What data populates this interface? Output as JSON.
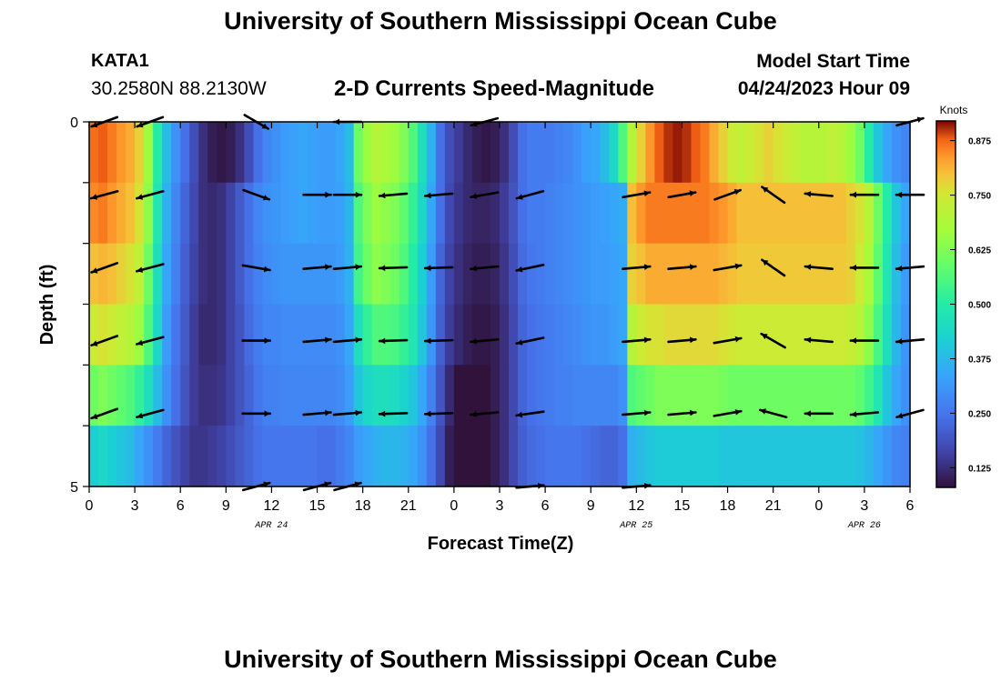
{
  "header": {
    "title": "University of Southern Mississippi Ocean Cube",
    "station": "KATA1",
    "coordinates": "30.2580N  88.2130W",
    "subtitle": "2-D Currents Speed-Magnitude",
    "model_start_label": "Model Start Time",
    "model_start_value": "04/24/2023 Hour 09"
  },
  "footer": {
    "title": "University of Southern Mississippi Ocean Cube"
  },
  "chart_data": {
    "type": "heatmap",
    "title": "2-D Currents Speed-Magnitude",
    "xlabel": "Forecast Time(Z)",
    "ylabel": "Depth (ft)",
    "x_tick_labels": [
      "0",
      "3",
      "6",
      "9",
      "12",
      "15",
      "18",
      "21",
      "0",
      "3",
      "6",
      "9",
      "12",
      "15",
      "18",
      "21",
      "0",
      "3",
      "6"
    ],
    "date_labels": [
      {
        "label": "APR 24",
        "at_tick": 4
      },
      {
        "label": "APR 25",
        "at_tick": 12
      },
      {
        "label": "APR 26",
        "at_tick": 17
      }
    ],
    "y_tick_labels": [
      {
        "label": "0",
        "depth": 0
      },
      {
        "label": "5",
        "depth": 5
      }
    ],
    "ylim": [
      0,
      5
    ],
    "hours_range": [
      0,
      54
    ],
    "hours_per_column": 1,
    "color_range": [
      0.08,
      0.92
    ],
    "colorbar": {
      "unit": "Knots",
      "ticks": [
        "0.125",
        "0.250",
        "0.375",
        "0.500",
        "0.625",
        "0.750",
        "0.875"
      ],
      "tick_values": [
        0.125,
        0.25,
        0.375,
        0.5,
        0.625,
        0.75,
        0.875
      ]
    },
    "speed_knots": [
      [
        0.87,
        0.88,
        0.86,
        0.84,
        0.82,
        0.78,
        0.66,
        0.5,
        0.38,
        0.3,
        0.24,
        0.18,
        0.13,
        0.1,
        0.09,
        0.1,
        0.13,
        0.18,
        0.24,
        0.28,
        0.3,
        0.32,
        0.33,
        0.34,
        0.33,
        0.32,
        0.32,
        0.34,
        0.38,
        0.6,
        0.66,
        0.7,
        0.68,
        0.66,
        0.62,
        0.56,
        0.46,
        0.36,
        0.24,
        0.18,
        0.15,
        0.12,
        0.1,
        0.09,
        0.1,
        0.13,
        0.18,
        0.24,
        0.26,
        0.26,
        0.26,
        0.27,
        0.28,
        0.3,
        0.33,
        0.34,
        0.38,
        0.44,
        0.56,
        0.7,
        0.78,
        0.84,
        0.88,
        0.9,
        0.91,
        0.9,
        0.88,
        0.86,
        0.82,
        0.78,
        0.74,
        0.72,
        0.74,
        0.76,
        0.78,
        0.76,
        0.74,
        0.72,
        0.7,
        0.7,
        0.7,
        0.72,
        0.7,
        0.66,
        0.6,
        0.5,
        0.4,
        0.34,
        0.3,
        0.28
      ],
      [
        0.85,
        0.86,
        0.84,
        0.82,
        0.8,
        0.76,
        0.64,
        0.48,
        0.36,
        0.28,
        0.22,
        0.17,
        0.13,
        0.12,
        0.13,
        0.16,
        0.2,
        0.24,
        0.28,
        0.3,
        0.31,
        0.32,
        0.33,
        0.34,
        0.33,
        0.32,
        0.32,
        0.33,
        0.37,
        0.56,
        0.62,
        0.66,
        0.64,
        0.62,
        0.58,
        0.52,
        0.44,
        0.34,
        0.24,
        0.17,
        0.14,
        0.12,
        0.11,
        0.11,
        0.12,
        0.15,
        0.19,
        0.24,
        0.26,
        0.26,
        0.27,
        0.28,
        0.29,
        0.3,
        0.31,
        0.32,
        0.33,
        0.34,
        0.35,
        0.8,
        0.84,
        0.86,
        0.86,
        0.86,
        0.86,
        0.86,
        0.86,
        0.86,
        0.85,
        0.84,
        0.82,
        0.8,
        0.8,
        0.8,
        0.8,
        0.8,
        0.8,
        0.8,
        0.8,
        0.8,
        0.8,
        0.8,
        0.8,
        0.78,
        0.76,
        0.7,
        0.6,
        0.5,
        0.4,
        0.34
      ],
      [
        0.8,
        0.81,
        0.8,
        0.78,
        0.76,
        0.72,
        0.6,
        0.46,
        0.34,
        0.27,
        0.21,
        0.16,
        0.13,
        0.12,
        0.13,
        0.16,
        0.2,
        0.24,
        0.27,
        0.29,
        0.3,
        0.31,
        0.31,
        0.31,
        0.31,
        0.31,
        0.31,
        0.32,
        0.36,
        0.54,
        0.6,
        0.64,
        0.62,
        0.6,
        0.56,
        0.5,
        0.42,
        0.32,
        0.22,
        0.16,
        0.13,
        0.11,
        0.1,
        0.1,
        0.11,
        0.14,
        0.18,
        0.23,
        0.25,
        0.26,
        0.27,
        0.28,
        0.29,
        0.3,
        0.31,
        0.32,
        0.32,
        0.33,
        0.34,
        0.78,
        0.8,
        0.82,
        0.82,
        0.82,
        0.82,
        0.82,
        0.82,
        0.82,
        0.82,
        0.81,
        0.8,
        0.79,
        0.79,
        0.79,
        0.79,
        0.79,
        0.79,
        0.79,
        0.79,
        0.79,
        0.79,
        0.79,
        0.79,
        0.78,
        0.74,
        0.68,
        0.58,
        0.48,
        0.38,
        0.32
      ],
      [
        0.74,
        0.76,
        0.74,
        0.72,
        0.7,
        0.66,
        0.56,
        0.44,
        0.32,
        0.25,
        0.2,
        0.15,
        0.12,
        0.12,
        0.13,
        0.16,
        0.19,
        0.23,
        0.26,
        0.28,
        0.28,
        0.29,
        0.29,
        0.29,
        0.29,
        0.29,
        0.29,
        0.3,
        0.34,
        0.46,
        0.52,
        0.56,
        0.56,
        0.55,
        0.52,
        0.48,
        0.4,
        0.31,
        0.21,
        0.15,
        0.12,
        0.1,
        0.09,
        0.09,
        0.1,
        0.13,
        0.17,
        0.22,
        0.24,
        0.25,
        0.26,
        0.27,
        0.28,
        0.29,
        0.3,
        0.31,
        0.31,
        0.32,
        0.34,
        0.7,
        0.74,
        0.76,
        0.76,
        0.77,
        0.77,
        0.77,
        0.77,
        0.77,
        0.77,
        0.76,
        0.75,
        0.74,
        0.74,
        0.74,
        0.74,
        0.74,
        0.74,
        0.74,
        0.74,
        0.74,
        0.74,
        0.74,
        0.74,
        0.73,
        0.7,
        0.64,
        0.55,
        0.46,
        0.37,
        0.31
      ],
      [
        0.6,
        0.62,
        0.6,
        0.58,
        0.56,
        0.52,
        0.46,
        0.38,
        0.3,
        0.24,
        0.19,
        0.15,
        0.13,
        0.13,
        0.14,
        0.16,
        0.19,
        0.22,
        0.25,
        0.27,
        0.27,
        0.28,
        0.28,
        0.28,
        0.28,
        0.28,
        0.28,
        0.29,
        0.32,
        0.4,
        0.44,
        0.46,
        0.46,
        0.45,
        0.43,
        0.4,
        0.34,
        0.27,
        0.19,
        0.12,
        0.08,
        0.06,
        0.07,
        0.08,
        0.1,
        0.13,
        0.17,
        0.22,
        0.24,
        0.25,
        0.26,
        0.27,
        0.27,
        0.28,
        0.28,
        0.28,
        0.28,
        0.28,
        0.3,
        0.56,
        0.58,
        0.6,
        0.62,
        0.62,
        0.62,
        0.62,
        0.62,
        0.62,
        0.62,
        0.61,
        0.6,
        0.6,
        0.6,
        0.6,
        0.6,
        0.6,
        0.6,
        0.6,
        0.6,
        0.6,
        0.6,
        0.6,
        0.6,
        0.6,
        0.58,
        0.54,
        0.48,
        0.4,
        0.34,
        0.3
      ],
      [
        0.42,
        0.44,
        0.42,
        0.4,
        0.38,
        0.34,
        0.3,
        0.26,
        0.22,
        0.19,
        0.16,
        0.14,
        0.14,
        0.15,
        0.16,
        0.18,
        0.2,
        0.22,
        0.24,
        0.25,
        0.25,
        0.25,
        0.25,
        0.25,
        0.25,
        0.24,
        0.24,
        0.26,
        0.28,
        0.32,
        0.34,
        0.36,
        0.37,
        0.37,
        0.36,
        0.34,
        0.3,
        0.24,
        0.17,
        0.1,
        0.06,
        0.04,
        0.05,
        0.07,
        0.1,
        0.13,
        0.17,
        0.21,
        0.23,
        0.24,
        0.25,
        0.25,
        0.25,
        0.25,
        0.24,
        0.23,
        0.22,
        0.22,
        0.24,
        0.36,
        0.38,
        0.4,
        0.41,
        0.41,
        0.41,
        0.41,
        0.41,
        0.41,
        0.41,
        0.4,
        0.4,
        0.4,
        0.4,
        0.4,
        0.4,
        0.4,
        0.4,
        0.4,
        0.4,
        0.4,
        0.4,
        0.4,
        0.4,
        0.4,
        0.39,
        0.37,
        0.34,
        0.31,
        0.28,
        0.27
      ]
    ],
    "vectors": {
      "hours": [
        1,
        4,
        9,
        11,
        15,
        17,
        20,
        23,
        26,
        29,
        33,
        36,
        39,
        42,
        45,
        48,
        51,
        54
      ],
      "depths": [
        0,
        1,
        2,
        3,
        4,
        5
      ],
      "row_angles_deg": [
        [
          200,
          200,
          null,
          330,
          null,
          180,
          null,
          null,
          195,
          null,
          null,
          null,
          null,
          null,
          null,
          null,
          null,
          15
        ],
        [
          195,
          195,
          null,
          340,
          0,
          0,
          185,
          185,
          190,
          195,
          null,
          10,
          10,
          20,
          145,
          175,
          180,
          180
        ],
        [
          200,
          195,
          null,
          350,
          5,
          5,
          182,
          182,
          185,
          192,
          null,
          5,
          5,
          10,
          145,
          175,
          180,
          185
        ],
        [
          200,
          195,
          null,
          0,
          5,
          5,
          182,
          182,
          185,
          192,
          null,
          5,
          5,
          10,
          150,
          175,
          180,
          185
        ],
        [
          200,
          195,
          null,
          0,
          5,
          5,
          182,
          182,
          185,
          188,
          null,
          5,
          5,
          10,
          165,
          180,
          185,
          195
        ],
        [
          null,
          null,
          null,
          15,
          15,
          15,
          null,
          null,
          null,
          5,
          null,
          5,
          null,
          null,
          null,
          null,
          null,
          null
        ]
      ]
    }
  }
}
